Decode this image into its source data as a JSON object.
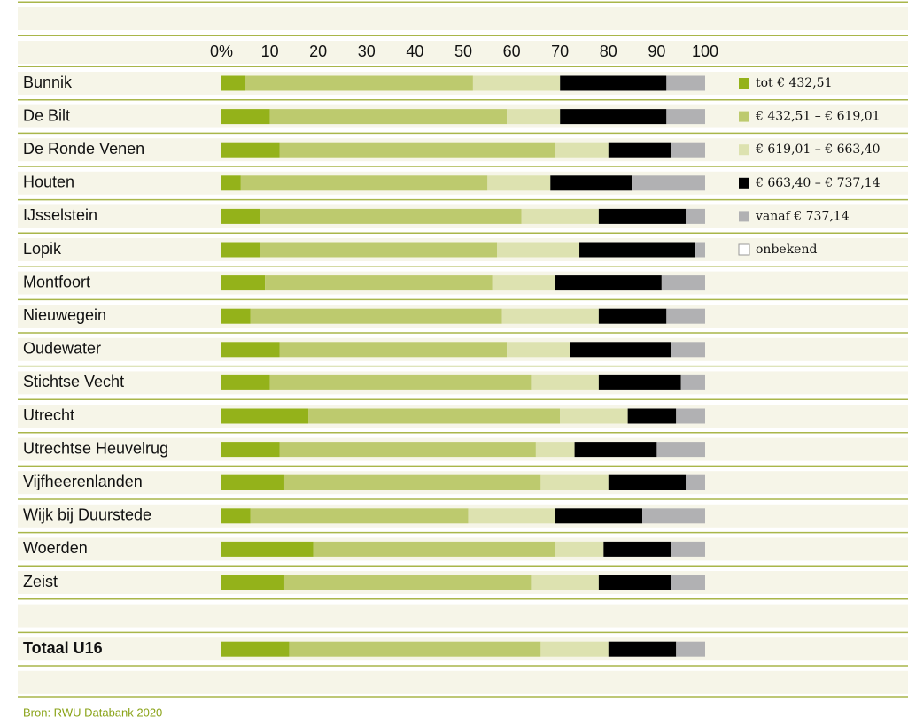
{
  "chart_data": {
    "type": "stacked_bar_horizontal",
    "categories": [
      "Bunnik",
      "De Bilt",
      "De Ronde Venen",
      "Houten",
      "IJsselstein",
      "Lopik",
      "Montfoort",
      "Nieuwegein",
      "Oudewater",
      "Stichtse Vecht",
      "Utrecht",
      "Utrechtse Heuvelrug",
      "Vijfheerenlanden",
      "Wijk bij Duurstede",
      "Woerden",
      "Zeist",
      "Totaal U16"
    ],
    "series": [
      {
        "name": "tot € 432,51",
        "color": "#94b21a",
        "values": [
          5,
          10,
          12,
          4,
          8,
          8,
          9,
          6,
          12,
          10,
          18,
          12,
          13,
          6,
          19,
          13,
          14
        ]
      },
      {
        "name": "€ 432,51 – € 619,01",
        "color": "#bdca6e",
        "values": [
          47,
          49,
          57,
          51,
          54,
          49,
          47,
          52,
          47,
          54,
          52,
          53,
          53,
          45,
          50,
          51,
          52
        ]
      },
      {
        "name": "€ 619,01 – € 663,40",
        "color": "#dde2b0",
        "values": [
          18,
          11,
          11,
          13,
          16,
          17,
          13,
          20,
          13,
          14,
          14,
          8,
          14,
          18,
          10,
          14,
          14
        ]
      },
      {
        "name": "€ 663,40 – € 737,14",
        "color": "#000000",
        "values": [
          22,
          22,
          13,
          17,
          18,
          24,
          22,
          14,
          21,
          17,
          10,
          17,
          16,
          18,
          14,
          15,
          14
        ]
      },
      {
        "name": "vanaf € 737,14",
        "color": "#b1b1b3",
        "values": [
          8,
          8,
          7,
          15,
          4,
          2,
          9,
          8,
          7,
          5,
          6,
          10,
          4,
          13,
          7,
          7,
          6
        ]
      },
      {
        "name": "onbekend",
        "color": "#ffffff",
        "values": [
          0,
          0,
          0,
          0,
          0,
          0,
          0,
          0,
          0,
          0,
          0,
          0,
          0,
          0,
          0,
          0,
          0
        ]
      }
    ],
    "xlim": [
      0,
      100
    ],
    "xticks": [
      {
        "value": 0,
        "label": "0%"
      },
      10,
      20,
      30,
      40,
      50,
      60,
      70,
      80,
      90,
      100
    ],
    "source": "Bron: RWU Databank 2020"
  }
}
